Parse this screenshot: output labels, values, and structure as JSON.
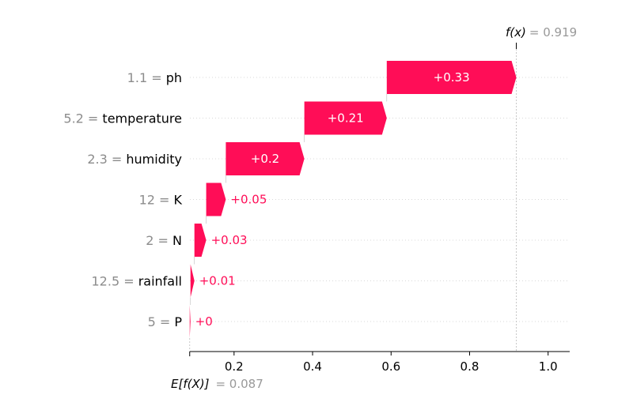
{
  "chart_data": {
    "type": "waterfall",
    "base_value": 0.087,
    "output_value": 0.919,
    "base_label": "E[f(X)]",
    "base_value_text": "= 0.087",
    "output_label": "f(x)",
    "output_value_text": "= 0.919",
    "xlim": [
      0.0875,
      1.055
    ],
    "xticks": [
      0.2,
      0.4,
      0.6,
      0.8,
      1.0
    ],
    "xtick_labels": [
      "0.2",
      "0.4",
      "0.6",
      "0.8",
      "1.0"
    ],
    "colors": {
      "positive": "#ff0d57",
      "text_light": "#ffffff",
      "value_grey": "#8c8c8c"
    },
    "features": [
      {
        "value": "1.1",
        "name": "ph",
        "contribution": 0.33,
        "label": "+0.33"
      },
      {
        "value": "5.2",
        "name": "temperature",
        "contribution": 0.21,
        "label": "+0.21"
      },
      {
        "value": "2.3",
        "name": "humidity",
        "contribution": 0.2,
        "label": "+0.2"
      },
      {
        "value": "12",
        "name": "K",
        "contribution": 0.05,
        "label": "+0.05"
      },
      {
        "value": "2",
        "name": "N",
        "contribution": 0.03,
        "label": "+0.03"
      },
      {
        "value": "12.5",
        "name": "rainfall",
        "contribution": 0.01,
        "label": "+0.01"
      },
      {
        "value": "5",
        "name": "P",
        "contribution": 0.002,
        "label": "+0"
      }
    ]
  }
}
